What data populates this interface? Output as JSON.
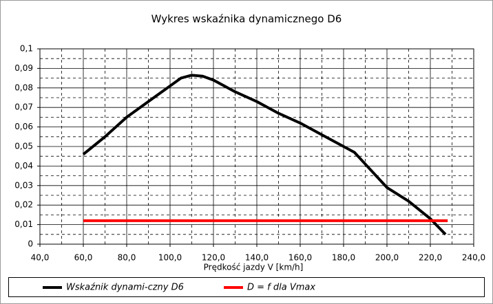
{
  "chart_data": {
    "type": "line",
    "title": "Wykres wskaźnika dynamicznego D6",
    "x_label": "Prędkość jazdy V [km/h]",
    "xlim": [
      40,
      240
    ],
    "xticks": [
      {
        "value": 40,
        "label": "40,0"
      },
      {
        "value": 60,
        "label": "60,0"
      },
      {
        "value": 80,
        "label": "80,0"
      },
      {
        "value": 100,
        "label": "100,0"
      },
      {
        "value": 120,
        "label": "120,0"
      },
      {
        "value": 140,
        "label": "140,0"
      },
      {
        "value": 160,
        "label": "160,0"
      },
      {
        "value": 180,
        "label": "180,0"
      },
      {
        "value": 200,
        "label": "200,0"
      },
      {
        "value": 220,
        "label": "220,0"
      },
      {
        "value": 240,
        "label": "240,0"
      }
    ],
    "ylim": [
      0,
      0.1
    ],
    "yticks": [
      0,
      {
        "value": 0.01,
        "label": "0,01"
      },
      {
        "value": 0.02,
        "label": "0,02"
      },
      {
        "value": 0.03,
        "label": "0,03"
      },
      {
        "value": 0.04,
        "label": "0,04"
      },
      {
        "value": 0.05,
        "label": "0,05"
      },
      {
        "value": 0.06,
        "label": "0,06"
      },
      {
        "value": 0.07,
        "label": "0,07"
      },
      {
        "value": 0.08,
        "label": "0,08"
      },
      {
        "value": 0.09,
        "label": "0,09"
      },
      {
        "value": 0.1,
        "label": "0,1"
      }
    ],
    "grid": true,
    "minor_grid": true,
    "legend": "bottom",
    "series": [
      {
        "name": "Wskaźnik dynami-czny D6",
        "color": "#000000",
        "x": [
          60,
          70,
          80,
          90,
          100,
          105,
          110,
          115,
          120,
          130,
          140,
          150,
          160,
          170,
          180,
          185,
          190,
          195,
          200,
          210,
          220,
          227
        ],
        "values": [
          0.046,
          0.055,
          0.065,
          0.073,
          0.081,
          0.085,
          0.0865,
          0.086,
          0.084,
          0.078,
          0.073,
          0.067,
          0.062,
          0.056,
          0.05,
          0.047,
          0.041,
          0.035,
          0.029,
          0.022,
          0.013,
          0.005
        ]
      },
      {
        "name": "D = f dla Vmax",
        "color": "#ff0000",
        "x": [
          60,
          228
        ],
        "values": [
          0.012,
          0.012
        ]
      }
    ]
  }
}
